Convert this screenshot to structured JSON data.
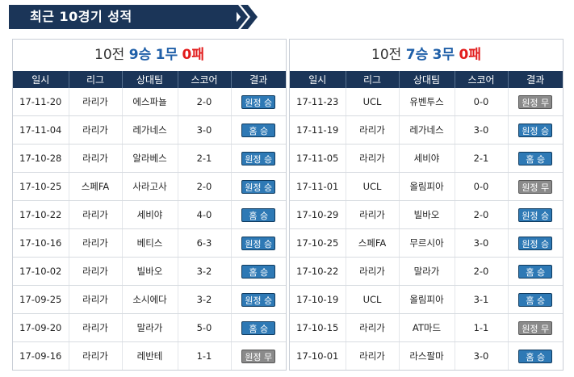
{
  "title": "최근 10경기 성적",
  "headers": [
    "일시",
    "리그",
    "상대팀",
    "스코어",
    "결과"
  ],
  "colors": {
    "banner": "#1b3558",
    "win_badge": "#2e79b5",
    "draw_badge": "#8a8a8a",
    "wins_text": "#1f5fa8",
    "loss_text": "#e21b1b"
  },
  "left": {
    "summary": {
      "games": "10전",
      "wins": "9승",
      "draws": "1무",
      "losses": "0패"
    },
    "rows": [
      {
        "date": "17-11-20",
        "league": "라리가",
        "opponent": "에스파뇰",
        "score": "2-0",
        "result": "원정 승",
        "kind": "win"
      },
      {
        "date": "17-11-04",
        "league": "라리가",
        "opponent": "레가네스",
        "score": "3-0",
        "result": "홈 승",
        "kind": "win"
      },
      {
        "date": "17-10-28",
        "league": "라리가",
        "opponent": "알라베스",
        "score": "2-1",
        "result": "원정 승",
        "kind": "win"
      },
      {
        "date": "17-10-25",
        "league": "스페FA",
        "opponent": "사라고사",
        "score": "2-0",
        "result": "원정 승",
        "kind": "win"
      },
      {
        "date": "17-10-22",
        "league": "라리가",
        "opponent": "세비야",
        "score": "4-0",
        "result": "홈 승",
        "kind": "win"
      },
      {
        "date": "17-10-16",
        "league": "라리가",
        "opponent": "베티스",
        "score": "6-3",
        "result": "원정 승",
        "kind": "win"
      },
      {
        "date": "17-10-02",
        "league": "라리가",
        "opponent": "빌바오",
        "score": "3-2",
        "result": "홈 승",
        "kind": "win"
      },
      {
        "date": "17-09-25",
        "league": "라리가",
        "opponent": "소시에다",
        "score": "3-2",
        "result": "원정 승",
        "kind": "win"
      },
      {
        "date": "17-09-20",
        "league": "라리가",
        "opponent": "말라가",
        "score": "5-0",
        "result": "홈 승",
        "kind": "win"
      },
      {
        "date": "17-09-16",
        "league": "라리가",
        "opponent": "레반테",
        "score": "1-1",
        "result": "원정 무",
        "kind": "draw"
      }
    ]
  },
  "right": {
    "summary": {
      "games": "10전",
      "wins": "7승",
      "draws": "3무",
      "losses": "0패"
    },
    "rows": [
      {
        "date": "17-11-23",
        "league": "UCL",
        "opponent": "유벤투스",
        "score": "0-0",
        "result": "원정 무",
        "kind": "draw"
      },
      {
        "date": "17-11-19",
        "league": "라리가",
        "opponent": "레가네스",
        "score": "3-0",
        "result": "원정 승",
        "kind": "win"
      },
      {
        "date": "17-11-05",
        "league": "라리가",
        "opponent": "세비야",
        "score": "2-1",
        "result": "홈 승",
        "kind": "win"
      },
      {
        "date": "17-11-01",
        "league": "UCL",
        "opponent": "올림피아",
        "score": "0-0",
        "result": "원정 무",
        "kind": "draw"
      },
      {
        "date": "17-10-29",
        "league": "라리가",
        "opponent": "빌바오",
        "score": "2-0",
        "result": "원정 승",
        "kind": "win"
      },
      {
        "date": "17-10-25",
        "league": "스페FA",
        "opponent": "무르시아",
        "score": "3-0",
        "result": "원정 승",
        "kind": "win"
      },
      {
        "date": "17-10-22",
        "league": "라리가",
        "opponent": "말라가",
        "score": "2-0",
        "result": "홈 승",
        "kind": "win"
      },
      {
        "date": "17-10-19",
        "league": "UCL",
        "opponent": "올림피아",
        "score": "3-1",
        "result": "홈 승",
        "kind": "win"
      },
      {
        "date": "17-10-15",
        "league": "라리가",
        "opponent": "AT마드",
        "score": "1-1",
        "result": "원정 무",
        "kind": "draw"
      },
      {
        "date": "17-10-01",
        "league": "라리가",
        "opponent": "라스팔마",
        "score": "3-0",
        "result": "홈 승",
        "kind": "win"
      }
    ]
  }
}
